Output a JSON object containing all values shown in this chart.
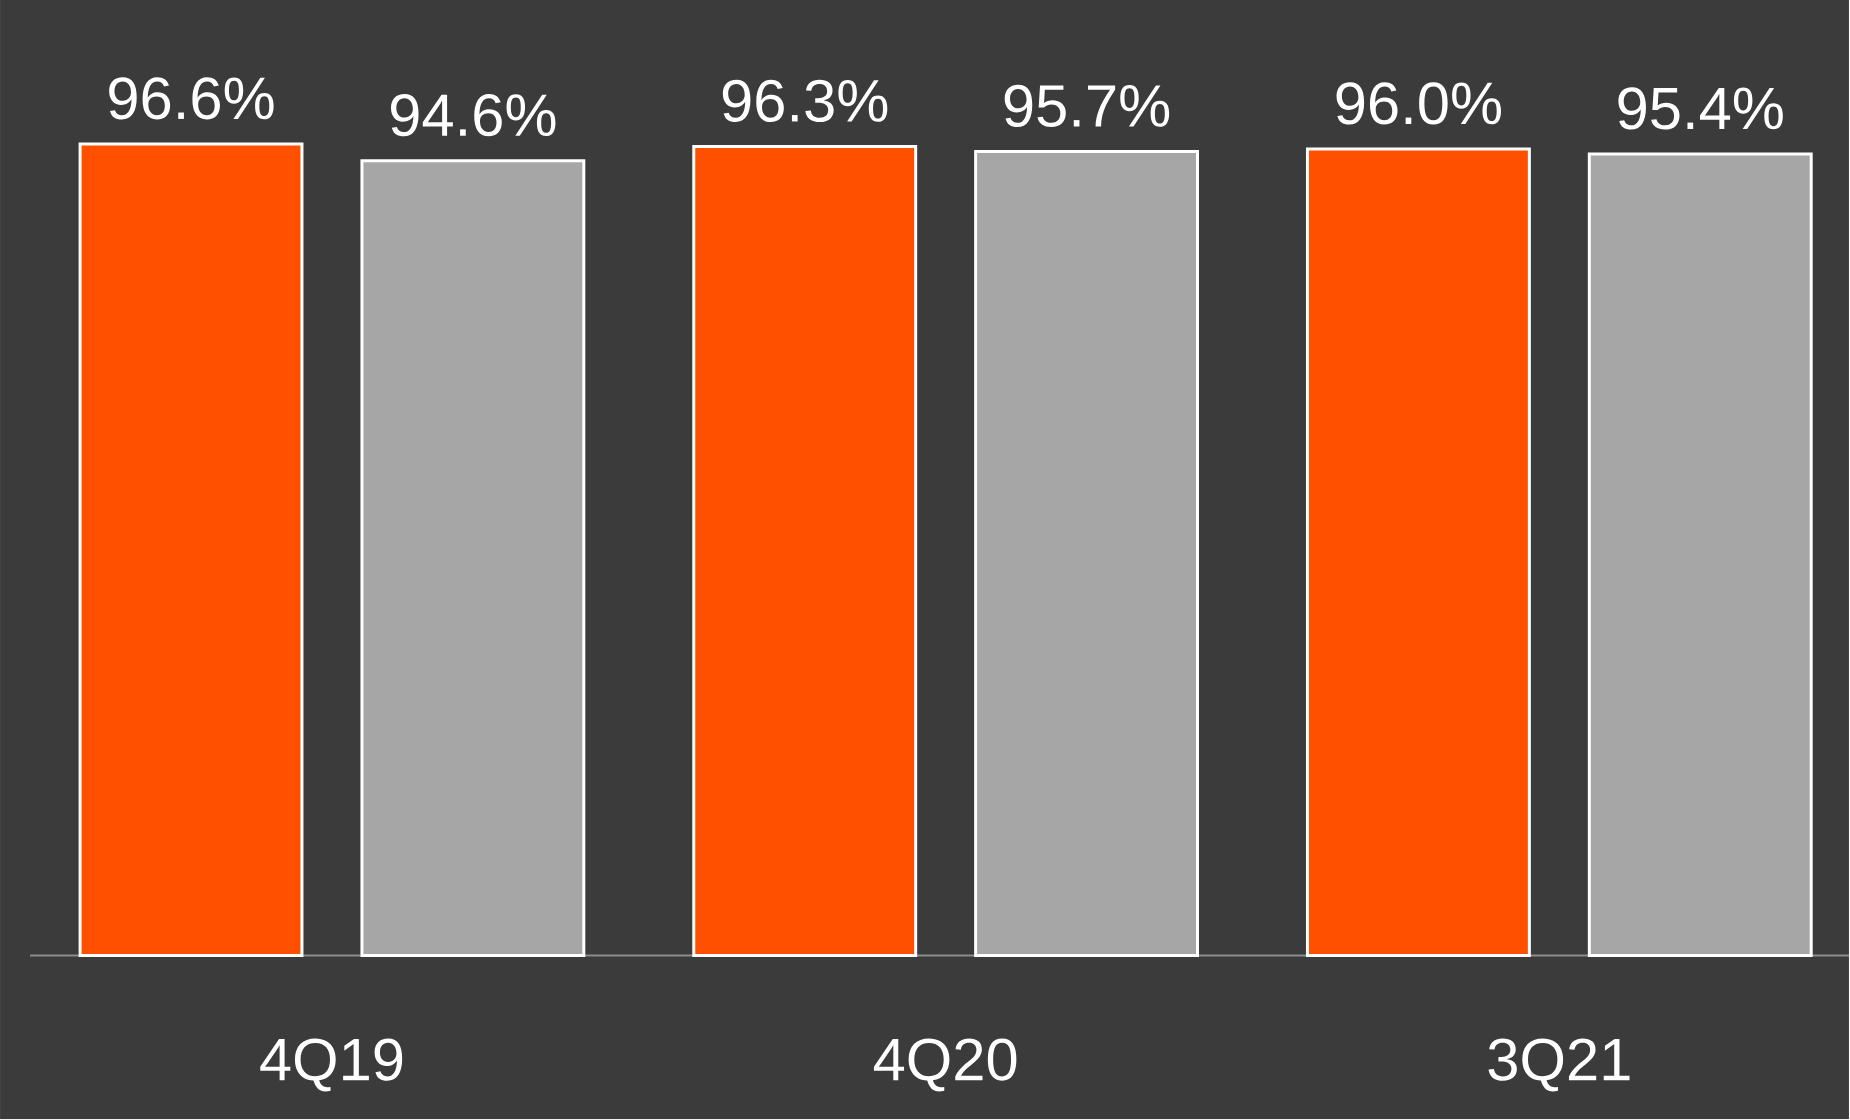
{
  "chart_data": {
    "type": "bar",
    "categories": [
      "4Q19",
      "4Q20",
      "3Q21"
    ],
    "series": [
      {
        "color": "#ff5000",
        "values": [
          96.6,
          96.3,
          96.0
        ],
        "value_labels": [
          "96.6%",
          "96.3%",
          "96.0%"
        ]
      },
      {
        "color": "#a6a6a6",
        "values": [
          94.6,
          95.7,
          95.4
        ],
        "value_labels": [
          "94.6%",
          "95.7%",
          "95.4%"
        ]
      }
    ]
  }
}
